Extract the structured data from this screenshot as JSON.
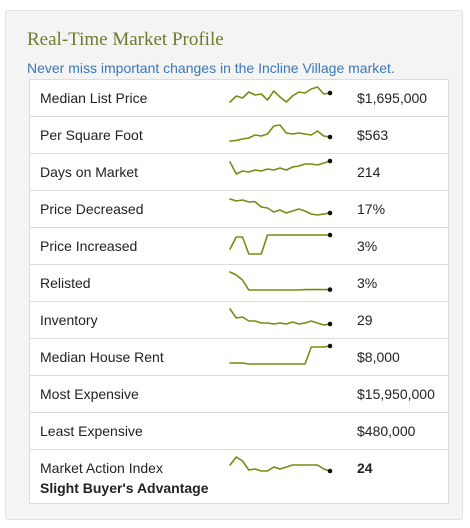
{
  "title": "Real-Time Market Profile",
  "subtitle": "Never miss important changes in the Incline Village market.",
  "colors": {
    "title": "#6f7a2e",
    "subtitle": "#3a78b6",
    "sparkline": "#7a8a12",
    "endpoint": "#111111"
  },
  "rows": [
    {
      "label": "Median List Price",
      "value": "$1,695,000",
      "trend": [
        0.25,
        0.55,
        0.45,
        0.75,
        0.6,
        0.65,
        0.35,
        0.8,
        0.5,
        0.25,
        0.55,
        0.75,
        0.7,
        0.9,
        1.0,
        0.65,
        0.7
      ]
    },
    {
      "label": "Per Square Foot",
      "value": "$563",
      "trend": [
        0.15,
        0.18,
        0.25,
        0.3,
        0.45,
        0.4,
        0.5,
        0.9,
        0.95,
        0.55,
        0.5,
        0.55,
        0.5,
        0.45,
        0.65,
        0.4,
        0.35
      ]
    },
    {
      "label": "Days on Market",
      "value": "214",
      "trend": [
        0.95,
        0.35,
        0.5,
        0.45,
        0.55,
        0.5,
        0.6,
        0.55,
        0.65,
        0.55,
        0.7,
        0.75,
        0.85,
        0.85,
        0.8,
        0.9,
        1.0
      ]
    },
    {
      "label": "Price Decreased",
      "value": "17%",
      "trend": [
        0.95,
        0.85,
        0.9,
        0.8,
        0.82,
        0.55,
        0.5,
        0.3,
        0.4,
        0.25,
        0.35,
        0.45,
        0.35,
        0.2,
        0.15,
        0.2,
        0.25
      ]
    },
    {
      "label": "Price Increased",
      "value": "3%",
      "trend": [
        0.3,
        0.9,
        0.9,
        0.05,
        0.05,
        0.05,
        1.0,
        1.0,
        1.0,
        1.0,
        1.0,
        1.0,
        1.0,
        1.0,
        1.0,
        1.0,
        1.0
      ]
    },
    {
      "label": "Relisted",
      "value": "3%",
      "trend": [
        1.0,
        0.85,
        0.6,
        0.1,
        0.1,
        0.1,
        0.1,
        0.1,
        0.1,
        0.1,
        0.1,
        0.1,
        0.12,
        0.12,
        0.12,
        0.12,
        0.12
      ]
    },
    {
      "label": "Inventory",
      "value": "29",
      "trend": [
        1.0,
        0.55,
        0.6,
        0.4,
        0.4,
        0.3,
        0.3,
        0.25,
        0.3,
        0.25,
        0.35,
        0.25,
        0.3,
        0.4,
        0.3,
        0.2,
        0.25
      ]
    },
    {
      "label": "Median House Rent",
      "value": "$8,000",
      "trend": [
        0.15,
        0.15,
        0.15,
        0.1,
        0.1,
        0.1,
        0.1,
        0.1,
        0.1,
        0.1,
        0.1,
        0.1,
        0.1,
        0.95,
        0.95,
        0.95,
        1.0
      ]
    },
    {
      "label": "Most Expensive",
      "value": "$15,950,000",
      "trend": null
    },
    {
      "label": "Least Expensive",
      "value": "$480,000",
      "trend": null
    },
    {
      "label": "Market Action Index",
      "value": "24",
      "sublabel": "Slight Buyer's Advantage",
      "trend": [
        0.6,
        1.0,
        0.8,
        0.35,
        0.4,
        0.3,
        0.3,
        0.5,
        0.4,
        0.5,
        0.6,
        0.6,
        0.6,
        0.6,
        0.6,
        0.4,
        0.3
      ]
    }
  ]
}
